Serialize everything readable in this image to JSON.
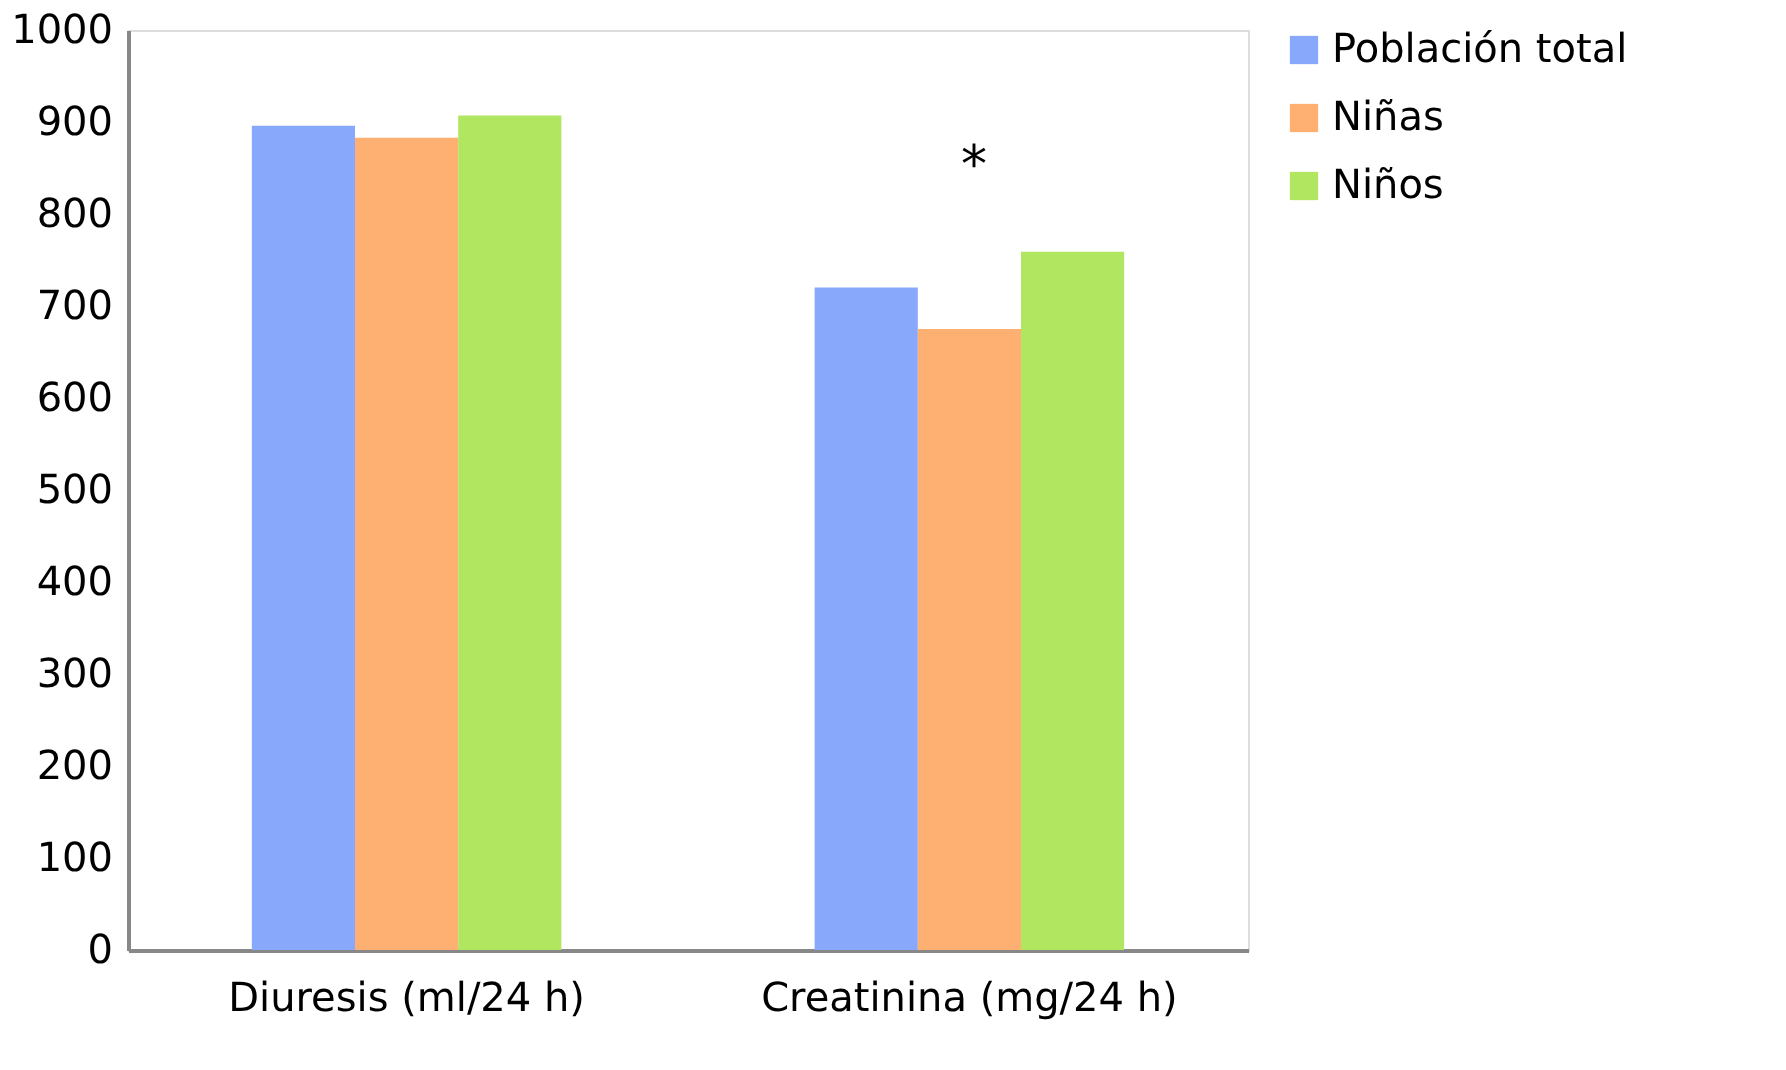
{
  "chart_data": {
    "type": "bar",
    "categories": [
      "Diuresis (ml/24 h)",
      "Creatinina (mg/24 h)"
    ],
    "series": [
      {
        "name": "Población total",
        "color": "#88a8fc",
        "values": [
          896,
          720
        ]
      },
      {
        "name": "Niñas",
        "color": "#fdb072",
        "values": [
          883,
          675
        ]
      },
      {
        "name": "Niños",
        "color": "#b1e660",
        "values": [
          907,
          759
        ]
      }
    ],
    "ylim": [
      0,
      1000
    ],
    "yticks": [
      0,
      100,
      200,
      300,
      400,
      500,
      600,
      700,
      800,
      900,
      1000
    ],
    "grid": false,
    "legend": "right",
    "annotations": [
      "*"
    ]
  }
}
